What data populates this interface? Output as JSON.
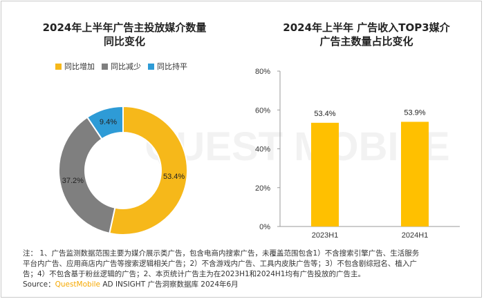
{
  "left_title": [
    "2024年上半年广告主投放媒介数量",
    "同比变化"
  ],
  "right_title": [
    "2024年上半年 广告收入TOP3媒介",
    "广告主数量占比变化"
  ],
  "notes": [
    "注： 1、广告监测数据范围主要为媒介展示类广告，包含电商内搜索广告，未覆盖范围包含1）不含搜索引擎广告、生活服务",
    "平台内广告、应用商店内广告等搜索逻辑相关广告；2）不含游戏内广告、工具内皮肤广告等；3）不包含剧综冠名、植入广",
    "告；4）不包含基于粉丝逻辑的广告；2、本页统计广告主为在2023H1和2024H1均有广告投放的广告主。"
  ],
  "source": {
    "prefix": "Source：",
    "brand": "QuestMobile",
    "rest": " AD INSIGHT 广告洞察数据库 2024年6月"
  },
  "watermark": "QUEST MOBILE",
  "colors": {
    "increase": "#F6B81A",
    "decrease": "#7F7F7F",
    "flat": "#2E9BD6",
    "bar": "#FFC000"
  },
  "chart_data": [
    {
      "type": "pie",
      "variant": "donut",
      "legend_position": "top",
      "labels": [
        "同比增加",
        "同比减少",
        "同比持平"
      ],
      "values": [
        53.4,
        37.2,
        9.4
      ],
      "value_labels": [
        "53.4%",
        "37.2%",
        "9.4%"
      ]
    },
    {
      "type": "bar",
      "categories": [
        "2023H1",
        "2024H1"
      ],
      "values": [
        53.4,
        53.9
      ],
      "value_labels": [
        "53.4%",
        "53.9%"
      ],
      "ylim": [
        0,
        80
      ],
      "yticks": [
        "0%",
        "20%",
        "40%",
        "60%",
        "80%"
      ],
      "grid": false
    }
  ]
}
